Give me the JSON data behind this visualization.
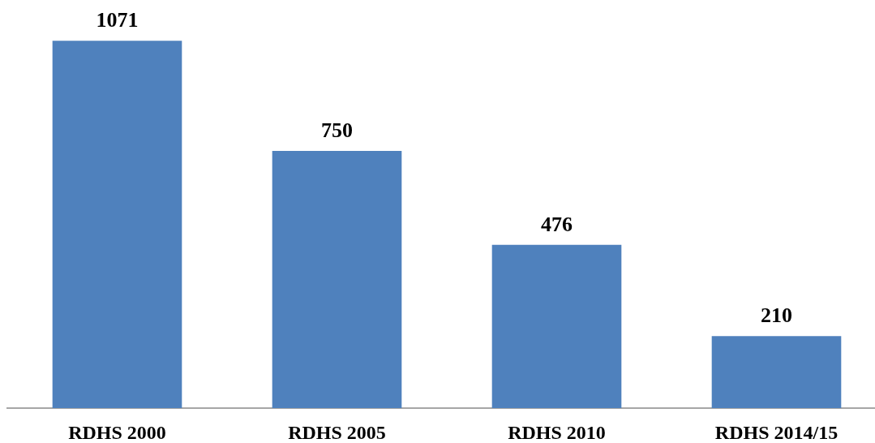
{
  "chart_data": {
    "type": "bar",
    "categories": [
      "RDHS 2000",
      "RDHS 2005",
      "RDHS 2010",
      "RDHS 2014/15"
    ],
    "values": [
      1071,
      750,
      476,
      210
    ],
    "color": "#4f81bd",
    "ylim": [
      0,
      1190
    ],
    "data_labels": true,
    "grid": false,
    "legend": false,
    "tick_labels": "x"
  }
}
